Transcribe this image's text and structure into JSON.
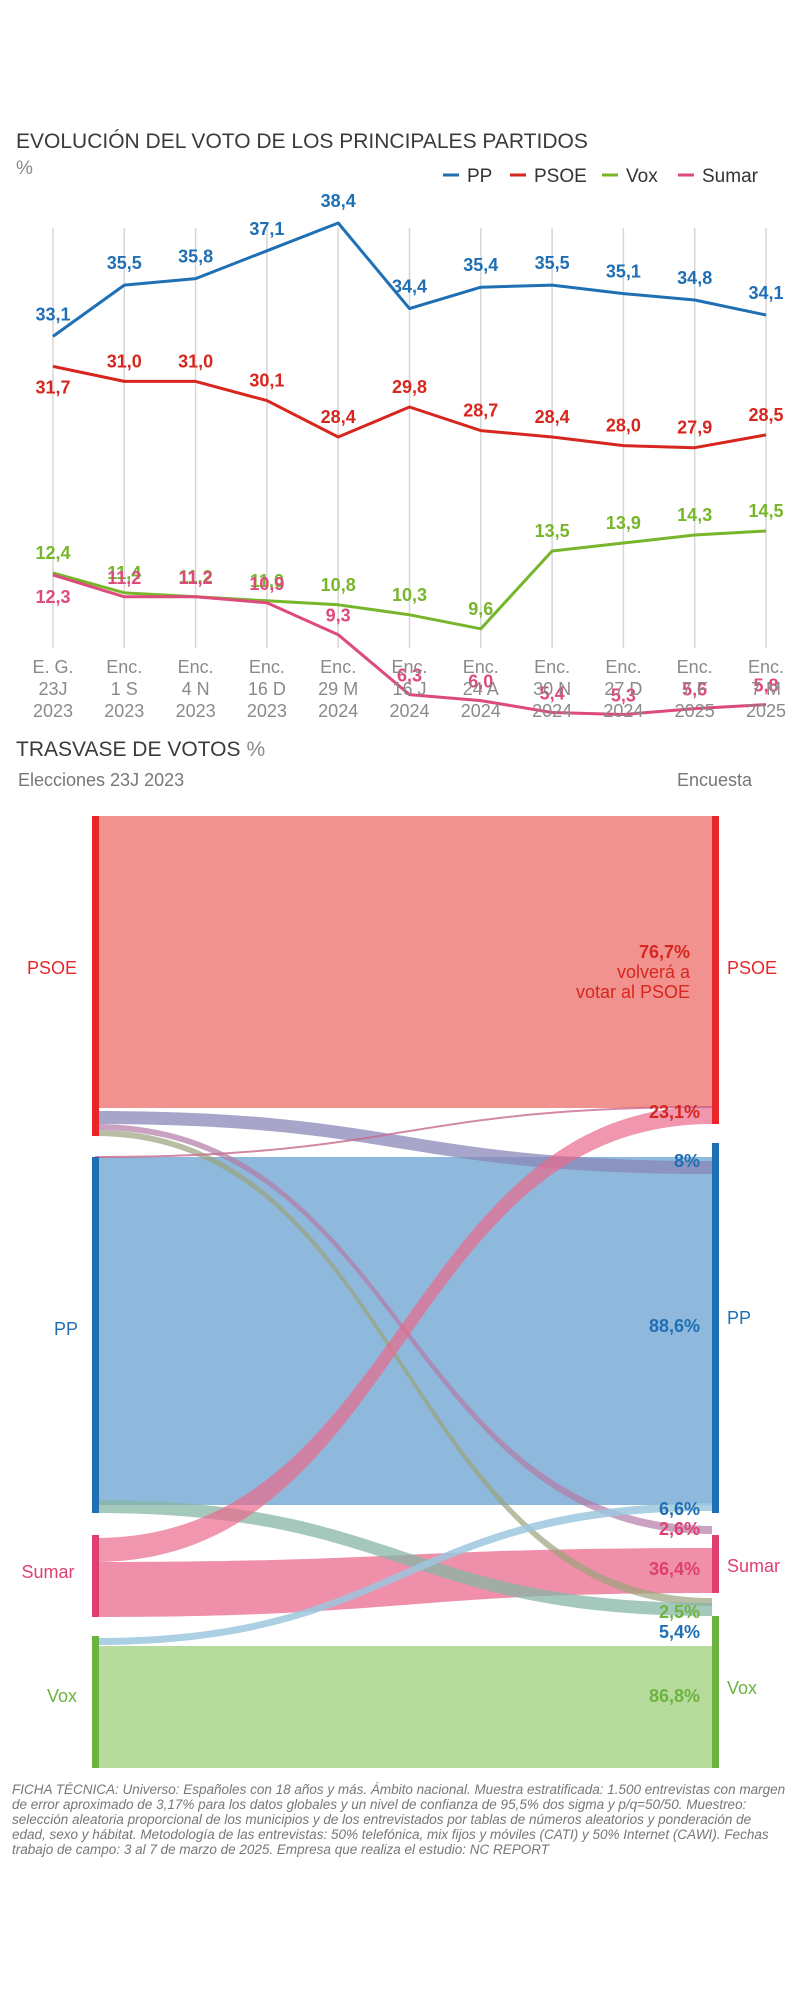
{
  "line_chart": {
    "title": "EVOLUCIÓN DEL VOTO DE LOS PRINCIPALES PARTIDOS",
    "unit": "%",
    "legend": [
      "PP",
      "PSOE",
      "Vox",
      "Sumar"
    ]
  },
  "sankey": {
    "title": "TRASVASE DE VOTOS",
    "unit": "%",
    "left_header": "Elecciones 23J 2023",
    "right_header": "Encuesta",
    "left_labels": [
      "PSOE",
      "PP",
      "Sumar",
      "Vox"
    ],
    "right_labels": [
      "PSOE",
      "PP",
      "Sumar",
      "Vox"
    ],
    "psoe_note_value": "76,7%",
    "psoe_note_line1": "volverá a",
    "psoe_note_line2": "votar al PSOE",
    "flow_labels": [
      "23,1%",
      "8%",
      "88,6%",
      "6,6%",
      "2,6%",
      "36,4%",
      "2,5%",
      "5,4%",
      "86,8%"
    ]
  },
  "ficha_tecnica": "FICHA TÉCNICA: Universo: Españoles con 18 años y más. Ámbito nacional. Muestra estratificada: 1.500 entrevistas con margen de error aproximado de 3,17% para los datos globales y un nivel de confianza de 95,5% dos sigma y p/q=50/50. Muestreo: selección aleatoria proporcional de los municipios y de los entrevistados por tablas de números aleatorios y ponderación de edad, sexo y hábitat. Metodología de las entrevistas: 50% telefónica, mix fijos y móviles (CATI) y 50% Internet (CAWI). Fechas trabajo de campo: 3 al 7 de marzo de 2025. Empresa que realiza el estudio: NC REPORT",
  "chart_data": [
    {
      "type": "line",
      "title": "EVOLUCIÓN DEL VOTO DE LOS PRINCIPALES PARTIDOS",
      "ylabel": "%",
      "categories": [
        [
          "E. G.",
          "23J",
          "2023"
        ],
        [
          "Enc.",
          "1 S",
          "2023"
        ],
        [
          "Enc.",
          "4 N",
          "2023"
        ],
        [
          "Enc.",
          "16 D",
          "2023"
        ],
        [
          "Enc.",
          "29 M",
          "2024"
        ],
        [
          "Enc.",
          "16 J",
          "2024"
        ],
        [
          "Enc.",
          "24 A",
          "2024"
        ],
        [
          "Enc.",
          "30 N",
          "2024"
        ],
        [
          "Enc.",
          "27 D",
          "2024"
        ],
        [
          "Enc.",
          "7 F",
          "2025"
        ],
        [
          "Enc.",
          "7 M",
          "2025"
        ]
      ],
      "series": [
        {
          "name": "PP",
          "color": "#1f6fb5",
          "values": [
            33.1,
            35.5,
            35.8,
            37.1,
            38.4,
            34.4,
            35.4,
            35.5,
            35.1,
            34.8,
            34.1
          ],
          "labels": [
            "33,1",
            "35,5",
            "35,8",
            "37,1",
            "38,4",
            "34,4",
            "35,4",
            "35,5",
            "35,1",
            "34,8",
            "34,1"
          ]
        },
        {
          "name": "PSOE",
          "color": "#d7261e",
          "values": [
            31.7,
            31.0,
            31.0,
            30.1,
            28.4,
            29.8,
            28.7,
            28.4,
            28.0,
            27.9,
            28.5
          ],
          "labels": [
            "31,7",
            "31,0",
            "31,0",
            "30,1",
            "28,4",
            "29,8",
            "28,7",
            "28,4",
            "28,0",
            "27,9",
            "28,5"
          ]
        },
        {
          "name": "Vox",
          "color": "#77b52b",
          "values": [
            12.4,
            11.4,
            11.2,
            11.0,
            10.8,
            10.3,
            9.6,
            13.5,
            13.9,
            14.3,
            14.5
          ],
          "labels": [
            "12,4",
            "11,4",
            "11,2",
            "11,0",
            "10,8",
            "10,3",
            "9,6",
            "13,5",
            "13,9",
            "14,3",
            "14,5"
          ]
        },
        {
          "name": "Sumar",
          "color": "#de4a7b",
          "values": [
            12.3,
            11.2,
            11.2,
            10.9,
            9.3,
            6.3,
            6.0,
            5.4,
            5.3,
            5.6,
            5.8
          ],
          "labels": [
            "12,3",
            "11,2",
            "11,2",
            "10,9",
            "9,3",
            "6,3",
            "6,0",
            "5,4",
            "5,3",
            "5,6",
            "5,8"
          ]
        }
      ]
    },
    {
      "type": "sankey",
      "title": "TRASVASE DE VOTOS",
      "unit": "%",
      "source_column": "Elecciones 23J 2023",
      "target_column": "Encuesta",
      "nodes": [
        "PSOE",
        "PP",
        "Sumar",
        "Vox"
      ],
      "flows": [
        {
          "from": "PSOE",
          "to": "PSOE",
          "value": 76.7
        },
        {
          "from": "PSOE",
          "to": "PP",
          "value": 8
        },
        {
          "from": "PSOE",
          "to": "Sumar",
          "value": 2.6
        },
        {
          "from": "PSOE",
          "to": "Vox",
          "value": 2.5
        },
        {
          "from": "PP",
          "to": "PP",
          "value": 88.6
        },
        {
          "from": "PP",
          "to": "Vox",
          "value": 5.4
        },
        {
          "from": "Sumar",
          "to": "PSOE",
          "value": 23.1
        },
        {
          "from": "Sumar",
          "to": "Sumar",
          "value": 36.4
        },
        {
          "from": "Vox",
          "to": "PP",
          "value": 6.6
        },
        {
          "from": "Vox",
          "to": "Vox",
          "value": 86.8
        }
      ]
    }
  ]
}
